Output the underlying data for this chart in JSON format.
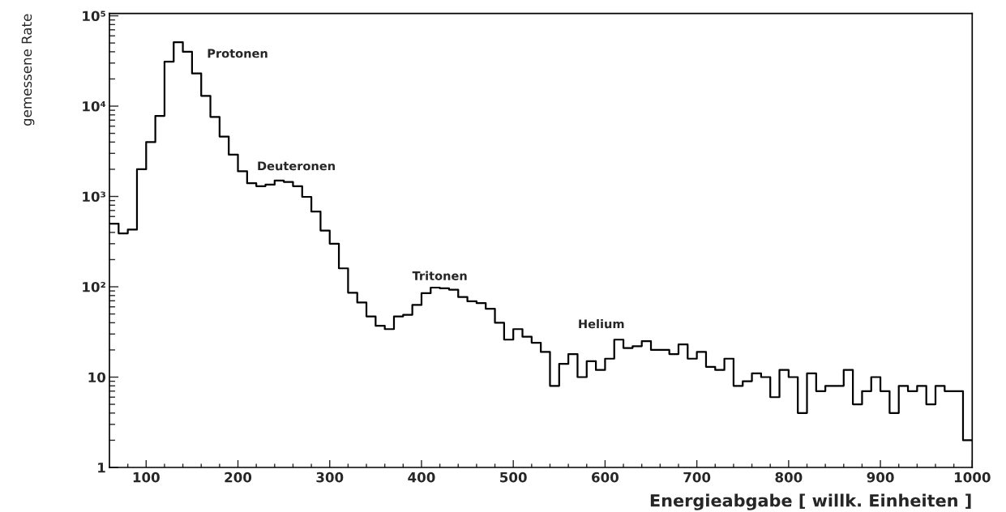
{
  "chart_data": {
    "type": "histogram",
    "color": "#000000",
    "log": true,
    "xlabel": "Energieabgabe [ willk. Einheiten ]",
    "ylabel": "gemessene Rate",
    "bins": [
      60,
      70,
      80,
      90,
      100,
      110,
      120,
      130,
      140,
      150,
      160,
      170,
      180,
      190,
      200,
      210,
      220,
      230,
      240,
      250,
      260,
      270,
      280,
      290,
      300,
      310,
      320,
      330,
      340,
      350,
      360,
      370,
      380,
      390,
      400,
      410,
      420,
      430,
      440,
      450,
      460,
      470,
      480,
      490,
      500,
      510,
      520,
      530,
      540,
      550,
      560,
      570,
      580,
      590,
      600,
      610,
      620,
      630,
      640,
      650,
      660,
      670,
      680,
      690,
      700,
      710,
      720,
      730,
      740,
      750,
      760,
      770,
      780,
      790,
      800,
      810,
      820,
      830,
      840,
      850,
      860,
      870,
      880,
      890,
      900,
      910,
      920,
      930,
      940,
      950,
      960,
      970,
      980,
      990,
      1000
    ],
    "values": [
      500,
      390,
      430,
      2000,
      4000,
      7800,
      31000,
      51000,
      40000,
      23000,
      13000,
      7600,
      4600,
      2900,
      1900,
      1400,
      1300,
      1350,
      1500,
      1450,
      1300,
      990,
      680,
      420,
      300,
      160,
      86,
      67,
      47,
      37,
      34,
      47,
      49,
      63,
      85,
      98,
      96,
      93,
      77,
      69,
      66,
      57,
      40,
      26,
      34,
      28,
      24,
      19,
      8,
      14,
      18,
      10,
      15,
      12,
      16,
      26,
      21,
      22,
      25,
      20,
      20,
      18,
      23,
      16,
      19,
      13,
      12,
      16,
      8,
      9,
      11,
      10,
      6,
      12,
      10,
      4,
      11,
      7,
      8,
      8,
      12,
      5,
      7,
      10,
      7,
      4,
      8,
      7,
      8,
      5,
      8,
      7,
      7,
      2
    ],
    "xlim": [
      60,
      1000
    ],
    "ylim": [
      1,
      106000
    ],
    "xticks": [
      {
        "value": 80,
        "label": null
      },
      100,
      {
        "value": 120,
        "label": null
      },
      {
        "value": 140,
        "label": null
      },
      {
        "value": 160,
        "label": null
      },
      {
        "value": 180,
        "label": null
      },
      200,
      {
        "value": 220,
        "label": null
      },
      {
        "value": 240,
        "label": null
      },
      {
        "value": 260,
        "label": null
      },
      {
        "value": 280,
        "label": null
      },
      300,
      {
        "value": 320,
        "label": null
      },
      {
        "value": 340,
        "label": null
      },
      {
        "value": 360,
        "label": null
      },
      {
        "value": 380,
        "label": null
      },
      400,
      {
        "value": 420,
        "label": null
      },
      {
        "value": 440,
        "label": null
      },
      {
        "value": 460,
        "label": null
      },
      {
        "value": 480,
        "label": null
      },
      500,
      {
        "value": 520,
        "label": null
      },
      {
        "value": 540,
        "label": null
      },
      {
        "value": 560,
        "label": null
      },
      {
        "value": 580,
        "label": null
      },
      600,
      {
        "value": 620,
        "label": null
      },
      {
        "value": 640,
        "label": null
      },
      {
        "value": 660,
        "label": null
      },
      {
        "value": 680,
        "label": null
      },
      700,
      {
        "value": 720,
        "label": null
      },
      {
        "value": 740,
        "label": null
      },
      {
        "value": 760,
        "label": null
      },
      {
        "value": 780,
        "label": null
      },
      800,
      {
        "value": 820,
        "label": null
      },
      {
        "value": 840,
        "label": null
      },
      {
        "value": 860,
        "label": null
      },
      {
        "value": 880,
        "label": null
      },
      900,
      {
        "value": 920,
        "label": null
      },
      {
        "value": 940,
        "label": null
      },
      {
        "value": 960,
        "label": null
      },
      {
        "value": 980,
        "label": null
      },
      1000
    ],
    "yticks": [
      1,
      {
        "value": 2,
        "label": null
      },
      {
        "value": 3,
        "label": null
      },
      {
        "value": 4,
        "label": null
      },
      {
        "value": 5,
        "label": null
      },
      {
        "value": 6,
        "label": null
      },
      {
        "value": 7,
        "label": null
      },
      {
        "value": 8,
        "label": null
      },
      {
        "value": 9,
        "label": null
      },
      10,
      {
        "value": 20,
        "label": null
      },
      {
        "value": 30,
        "label": null
      },
      {
        "value": 40,
        "label": null
      },
      {
        "value": 50,
        "label": null
      },
      {
        "value": 60,
        "label": null
      },
      {
        "value": 70,
        "label": null
      },
      {
        "value": 80,
        "label": null
      },
      {
        "value": 90,
        "label": null
      },
      {
        "value": 100,
        "label": "10²"
      },
      {
        "value": 200,
        "label": null
      },
      {
        "value": 300,
        "label": null
      },
      {
        "value": 400,
        "label": null
      },
      {
        "value": 500,
        "label": null
      },
      {
        "value": 600,
        "label": null
      },
      {
        "value": 700,
        "label": null
      },
      {
        "value": 800,
        "label": null
      },
      {
        "value": 900,
        "label": null
      },
      {
        "value": 1000,
        "label": "10³"
      },
      {
        "value": 2000,
        "label": null
      },
      {
        "value": 3000,
        "label": null
      },
      {
        "value": 4000,
        "label": null
      },
      {
        "value": 5000,
        "label": null
      },
      {
        "value": 6000,
        "label": null
      },
      {
        "value": 7000,
        "label": null
      },
      {
        "value": 8000,
        "label": null
      },
      {
        "value": 9000,
        "label": null
      },
      {
        "value": 10000,
        "label": "10⁴"
      },
      {
        "value": 20000,
        "label": null
      },
      {
        "value": 30000,
        "label": null
      },
      {
        "value": 40000,
        "label": null
      },
      {
        "value": 50000,
        "label": null
      },
      {
        "value": 60000,
        "label": null
      },
      {
        "value": 70000,
        "label": null
      },
      {
        "value": 80000,
        "label": null
      },
      {
        "value": 90000,
        "label": null
      },
      {
        "value": 100000,
        "label": "10⁵"
      }
    ],
    "annotations": [
      "Protonen",
      "Deuteronen",
      "Tritonen",
      "Helium"
    ]
  }
}
